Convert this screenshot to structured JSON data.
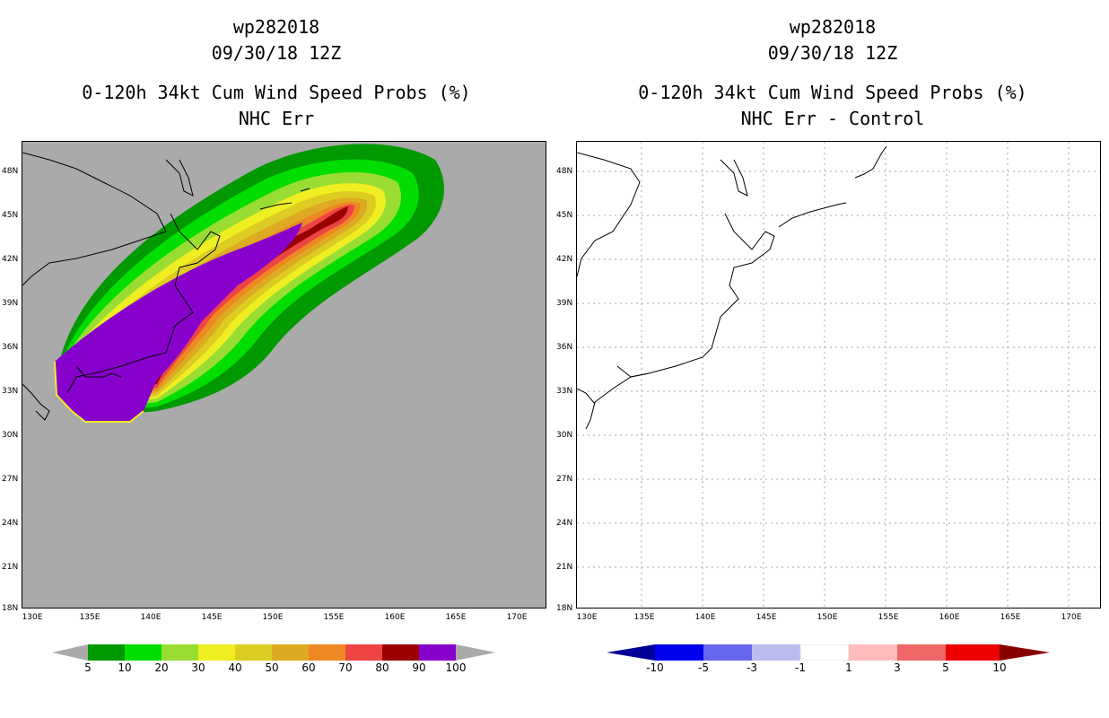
{
  "left_panel": {
    "title_line1": "wp282018",
    "title_line2": "09/30/18 12Z",
    "title_line3": "0-120h 34kt Cum Wind Speed Probs (%)",
    "title_line4": "NHC Err",
    "colorbar": {
      "labels": [
        "5",
        "10",
        "20",
        "30",
        "40",
        "50",
        "60",
        "70",
        "80",
        "90",
        "100"
      ],
      "colors": [
        "#009900",
        "#00dd00",
        "#99dd33",
        "#eeee22",
        "#ddcc22",
        "#ddaa22",
        "#ee8822",
        "#ee4444",
        "#990000",
        "#8800cc"
      ]
    }
  },
  "right_panel": {
    "title_line1": "wp282018",
    "title_line2": "09/30/18 12Z",
    "title_line3": "0-120h 34kt Cum Wind Speed Probs (%)",
    "title_line4": "NHC Err - Control",
    "colorbar": {
      "labels": [
        "-10",
        "-5",
        "-3",
        "-1",
        "1",
        "3",
        "5",
        "10"
      ],
      "colors": [
        "#000099",
        "#0000ee",
        "#6666ee",
        "#bbbbee",
        "#ffffff",
        "#ffbbbb",
        "#ee6666",
        "#ee0000",
        "#880000"
      ]
    }
  },
  "axes": {
    "lat_labels": [
      "48N",
      "45N",
      "42N",
      "39N",
      "36N",
      "33N",
      "30N",
      "27N",
      "24N",
      "21N",
      "18N"
    ],
    "lon_labels": [
      "130E",
      "135E",
      "140E",
      "145E",
      "150E",
      "155E",
      "160E",
      "165E",
      "170E"
    ]
  },
  "colors": {
    "ocean_gray": "#aaaaaa",
    "grid_dotted": "#aaaaaa"
  }
}
